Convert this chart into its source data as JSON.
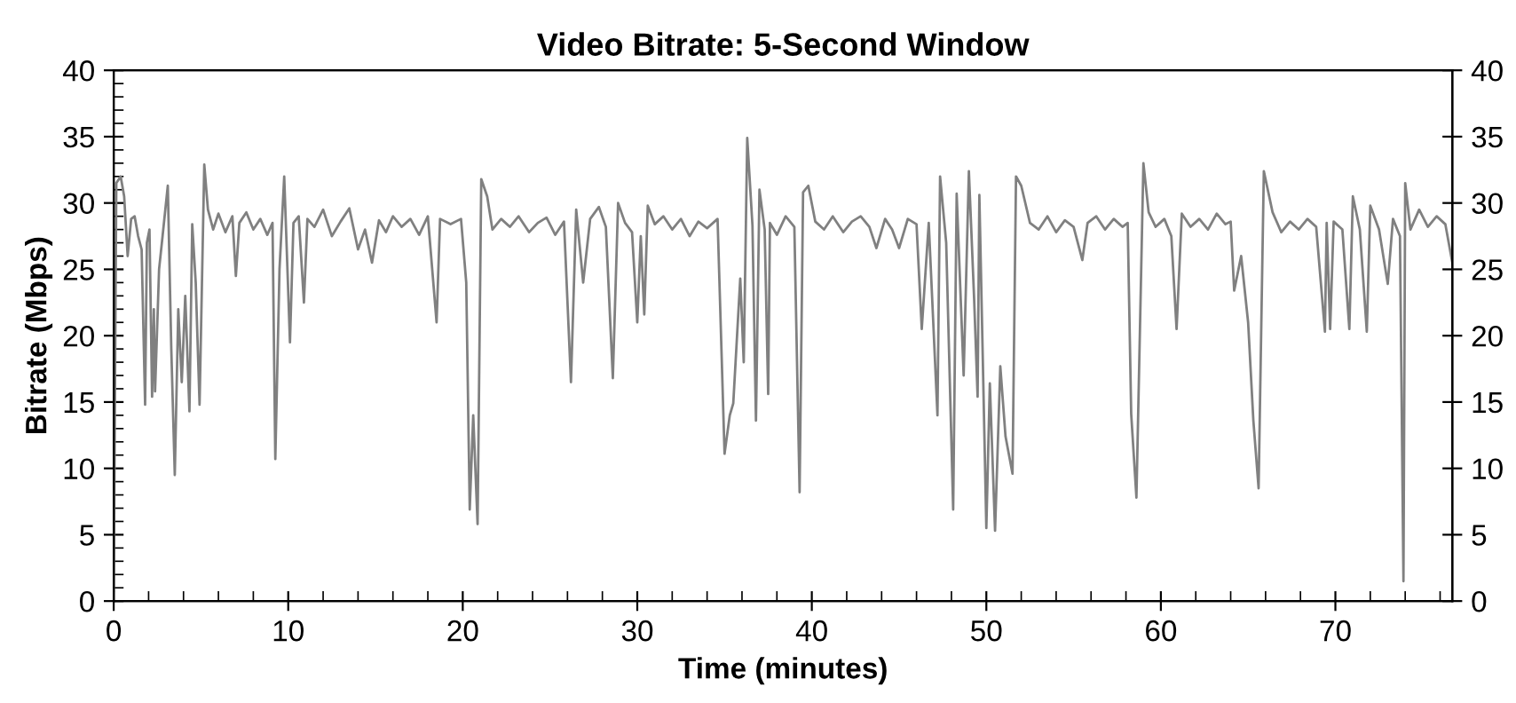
{
  "chart_data": {
    "type": "line",
    "title": "Video Bitrate: 5-Second Window",
    "xlabel": "Time (minutes)",
    "ylabel": "Bitrate (Mbps)",
    "xlim": [
      0,
      76.7
    ],
    "ylim": [
      0,
      40
    ],
    "y2lim": [
      0,
      40
    ],
    "xticks": [
      0,
      {
        "value": 2,
        "label": null
      },
      {
        "value": 4,
        "label": null
      },
      {
        "value": 6,
        "label": null
      },
      {
        "value": 8,
        "label": null
      },
      10,
      {
        "value": 12,
        "label": null
      },
      {
        "value": 14,
        "label": null
      },
      {
        "value": 16,
        "label": null
      },
      {
        "value": 18,
        "label": null
      },
      20,
      {
        "value": 22,
        "label": null
      },
      {
        "value": 24,
        "label": null
      },
      {
        "value": 26,
        "label": null
      },
      {
        "value": 28,
        "label": null
      },
      30,
      {
        "value": 32,
        "label": null
      },
      {
        "value": 34,
        "label": null
      },
      {
        "value": 36,
        "label": null
      },
      {
        "value": 38,
        "label": null
      },
      40,
      {
        "value": 42,
        "label": null
      },
      {
        "value": 44,
        "label": null
      },
      {
        "value": 46,
        "label": null
      },
      {
        "value": 48,
        "label": null
      },
      50,
      {
        "value": 52,
        "label": null
      },
      {
        "value": 54,
        "label": null
      },
      {
        "value": 56,
        "label": null
      },
      {
        "value": 58,
        "label": null
      },
      60,
      {
        "value": 62,
        "label": null
      },
      {
        "value": 64,
        "label": null
      },
      {
        "value": 66,
        "label": null
      },
      {
        "value": 68,
        "label": null
      },
      70,
      {
        "value": 72,
        "label": null
      },
      {
        "value": 74,
        "label": null
      },
      {
        "value": 76,
        "label": null
      }
    ],
    "yticks": [
      0,
      {
        "value": 1,
        "label": null
      },
      {
        "value": 2,
        "label": null
      },
      {
        "value": 3,
        "label": null
      },
      {
        "value": 4,
        "label": null
      },
      5,
      {
        "value": 6,
        "label": null
      },
      {
        "value": 7,
        "label": null
      },
      {
        "value": 8,
        "label": null
      },
      {
        "value": 9,
        "label": null
      },
      10,
      {
        "value": 11,
        "label": null
      },
      {
        "value": 12,
        "label": null
      },
      {
        "value": 13,
        "label": null
      },
      {
        "value": 14,
        "label": null
      },
      15,
      {
        "value": 16,
        "label": null
      },
      {
        "value": 17,
        "label": null
      },
      {
        "value": 18,
        "label": null
      },
      {
        "value": 19,
        "label": null
      },
      20,
      {
        "value": 21,
        "label": null
      },
      {
        "value": 22,
        "label": null
      },
      {
        "value": 23,
        "label": null
      },
      {
        "value": 24,
        "label": null
      },
      25,
      {
        "value": 26,
        "label": null
      },
      {
        "value": 27,
        "label": null
      },
      {
        "value": 28,
        "label": null
      },
      {
        "value": 29,
        "label": null
      },
      30,
      {
        "value": 31,
        "label": null
      },
      {
        "value": 32,
        "label": null
      },
      {
        "value": 33,
        "label": null
      },
      {
        "value": 34,
        "label": null
      },
      35,
      {
        "value": 36,
        "label": null
      },
      {
        "value": 37,
        "label": null
      },
      {
        "value": 38,
        "label": null
      },
      {
        "value": 39,
        "label": null
      },
      40
    ],
    "y2ticks": [
      0,
      5,
      10,
      15,
      20,
      25,
      30,
      35,
      40
    ],
    "marker": "none",
    "line_style": "solid",
    "series": [
      {
        "color": "#808080",
        "x": [
          0,
          0.15,
          0.4,
          0.6,
          0.8,
          1.0,
          1.2,
          1.4,
          1.6,
          1.8,
          1.9,
          2.05,
          2.2,
          2.3,
          2.37,
          2.6,
          2.8,
          3.1,
          3.3,
          3.5,
          3.7,
          3.9,
          4.1,
          4.34,
          4.5,
          4.7,
          4.92,
          5.19,
          5.4,
          5.7,
          6.0,
          6.4,
          6.8,
          7.0,
          7.2,
          7.6,
          8.0,
          8.4,
          8.8,
          9.1,
          9.26,
          9.5,
          9.77,
          10.1,
          10.3,
          10.6,
          10.9,
          11.1,
          11.5,
          12.0,
          12.5,
          13.0,
          13.5,
          14.0,
          14.4,
          14.8,
          15.2,
          15.6,
          16.0,
          16.5,
          17.0,
          17.5,
          18.0,
          18.5,
          18.7,
          19.3,
          19.9,
          20.2,
          20.4,
          20.6,
          20.85,
          21.06,
          21.4,
          21.7,
          22.2,
          22.7,
          23.2,
          23.8,
          24.3,
          24.8,
          25.3,
          25.8,
          26.2,
          26.5,
          26.9,
          27.3,
          27.8,
          28.2,
          28.6,
          28.9,
          29.3,
          29.7,
          30.0,
          30.2,
          30.4,
          30.6,
          31.0,
          31.5,
          32.0,
          32.5,
          33.0,
          33.5,
          34.0,
          34.6,
          35.0,
          35.3,
          35.5,
          35.9,
          36.1,
          36.3,
          36.6,
          36.8,
          37.0,
          37.3,
          37.5,
          37.6,
          38.0,
          38.5,
          39.0,
          39.3,
          39.5,
          39.8,
          40.2,
          40.7,
          41.2,
          41.8,
          42.3,
          42.8,
          43.3,
          43.7,
          44.2,
          44.6,
          45.0,
          45.5,
          46.0,
          46.3,
          46.7,
          47.2,
          47.35,
          47.7,
          48.1,
          48.3,
          48.7,
          49.0,
          49.3,
          49.5,
          49.6,
          50.0,
          50.2,
          50.5,
          50.8,
          51.1,
          51.5,
          51.7,
          52.0,
          52.5,
          53.0,
          53.5,
          54.0,
          54.5,
          55.0,
          55.5,
          55.8,
          56.3,
          56.8,
          57.3,
          57.8,
          58.1,
          58.3,
          58.6,
          58.8,
          59.0,
          59.3,
          59.7,
          60.2,
          60.6,
          60.9,
          61.2,
          61.7,
          62.2,
          62.7,
          63.2,
          63.7,
          64.0,
          64.2,
          64.6,
          65.0,
          65.3,
          65.6,
          65.9,
          66.4,
          66.9,
          67.4,
          67.9,
          68.4,
          68.9,
          69.4,
          69.5,
          69.7,
          69.9,
          70.4,
          70.8,
          71.0,
          71.4,
          71.8,
          72.0,
          72.5,
          73.0,
          73.3,
          73.7,
          73.9,
          74.0,
          74.3,
          74.8,
          75.3,
          75.8,
          76.3,
          76.7
        ],
        "values": [
          0.8,
          31.5,
          32,
          30.5,
          26,
          28.8,
          29,
          27.5,
          26.5,
          14.8,
          27,
          28,
          15.4,
          22,
          15.8,
          25,
          27.5,
          31.3,
          19,
          9.5,
          22,
          16.5,
          23,
          14.3,
          28.4,
          24,
          14.8,
          32.9,
          29.5,
          28,
          29.2,
          27.8,
          29,
          24.5,
          28.5,
          29.3,
          28,
          28.8,
          27.6,
          28.5,
          10.7,
          25,
          32,
          19.5,
          28.5,
          29,
          22.5,
          28.8,
          28.2,
          29.5,
          27.5,
          28.6,
          29.6,
          26.5,
          28,
          25.5,
          28.7,
          27.8,
          29,
          28.2,
          28.8,
          27.6,
          29,
          21,
          28.8,
          28.4,
          28.8,
          24,
          6.9,
          14,
          5.8,
          31.8,
          30.5,
          28,
          28.8,
          28.2,
          29,
          27.8,
          28.5,
          28.9,
          27.6,
          28.6,
          16.5,
          29.5,
          24,
          28.8,
          29.7,
          28.2,
          16.8,
          30,
          28.5,
          27.8,
          21,
          27.5,
          21.6,
          29.8,
          28.4,
          29,
          28,
          28.8,
          27.5,
          28.6,
          28.1,
          28.8,
          11.1,
          14,
          14.9,
          24.3,
          18,
          34.9,
          28.3,
          13.6,
          31,
          28,
          15.6,
          28.5,
          27.6,
          29,
          28.2,
          8.2,
          30.8,
          31.3,
          28.6,
          28,
          29,
          27.8,
          28.6,
          29,
          28.2,
          26.6,
          28.8,
          28,
          26.6,
          28.8,
          28.4,
          20.5,
          28.5,
          14,
          32,
          27,
          6.9,
          30.7,
          17,
          32.4,
          22.8,
          15.4,
          30.6,
          5.5,
          16.4,
          5.3,
          17.7,
          12.4,
          9.6,
          32,
          31.3,
          28.5,
          28,
          29,
          27.8,
          28.7,
          28.2,
          25.7,
          28.5,
          29,
          28,
          28.8,
          28.2,
          28.5,
          14.1,
          7.8,
          20.4,
          33,
          29.3,
          28.2,
          28.8,
          27.5,
          20.5,
          29.2,
          28.2,
          28.8,
          28,
          29.2,
          28.4,
          28.6,
          23.4,
          26,
          21,
          13.6,
          8.5,
          32.4,
          29.3,
          27.8,
          28.6,
          28,
          28.8,
          28.2,
          20.3,
          28.5,
          20.5,
          28.6,
          28,
          20.5,
          30.5,
          28,
          20.3,
          29.8,
          28,
          23.9,
          28.8,
          27.5,
          1.5,
          31.5,
          28,
          29.5,
          28.2,
          29,
          28.4,
          25.5
        ]
      }
    ]
  }
}
